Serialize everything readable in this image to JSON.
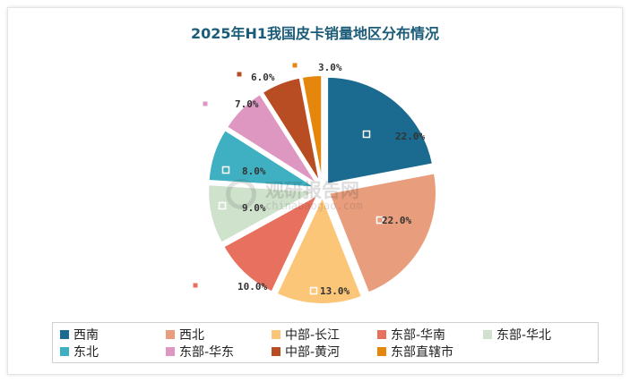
{
  "chart_data": {
    "type": "pie",
    "title": "2025年H1我国皮卡销量地区分布情况",
    "slices": [
      {
        "name": "西南",
        "value": 22.0,
        "label": "22.0%",
        "color": "#1b6a8f"
      },
      {
        "name": "西北",
        "value": 22.0,
        "label": "22.0%",
        "color": "#e89e7d"
      },
      {
        "name": "中部-长江",
        "value": 13.0,
        "label": "13.0%",
        "color": "#fcc679"
      },
      {
        "name": "东部-华南",
        "value": 10.0,
        "label": "10.0%",
        "color": "#e8705f"
      },
      {
        "name": "东部-华北",
        "value": 9.0,
        "label": "9.0%",
        "color": "#cfe2cc"
      },
      {
        "name": "东北",
        "value": 8.0,
        "label": "8.0%",
        "color": "#3fb0c1"
      },
      {
        "name": "东部-华东",
        "value": 7.0,
        "label": "7.0%",
        "color": "#dd97c1"
      },
      {
        "name": "中部-黄河",
        "value": 6.0,
        "label": "6.0%",
        "color": "#b84c22"
      },
      {
        "name": "东部直辖市",
        "value": 3.0,
        "label": "3.0%",
        "color": "#e4870c"
      }
    ],
    "legend_position": "bottom"
  },
  "watermark": {
    "brand": "观研报告网",
    "url": "chinabaogao.com"
  }
}
